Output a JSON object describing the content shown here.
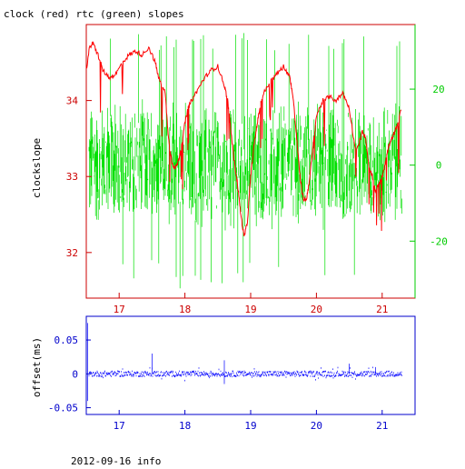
{
  "chart_data": [
    {
      "type": "line",
      "title": "clock (red) rtc (green) slopes",
      "ylabel": "clockslope",
      "xlim": [
        16.5,
        21.5
      ],
      "x_ticks": [
        17,
        18,
        19,
        20,
        21
      ],
      "ylim": [
        31.4,
        35.0
      ],
      "y_ticks": [
        32,
        33,
        34
      ],
      "y2lim": [
        -35,
        37
      ],
      "y2_ticks": [
        -20,
        0,
        20
      ],
      "colors": {
        "red": "#ff0000",
        "green": "#00e000",
        "axis_left": "#cc0000",
        "axis_right": "#00cc00",
        "ticks_x": "#cc0000"
      },
      "series": [
        {
          "color": "#ff0000",
          "axis": "left",
          "x": [
            16.5,
            16.55,
            16.6,
            16.68,
            16.75,
            16.85,
            16.95,
            17.05,
            17.15,
            17.25,
            17.35,
            17.45,
            17.55,
            17.6,
            17.7,
            17.75,
            17.8,
            17.85,
            17.9,
            17.95,
            18.0,
            18.05,
            18.1,
            18.2,
            18.3,
            18.4,
            18.5,
            18.6,
            18.65,
            18.7,
            18.75,
            18.8,
            18.85,
            18.9,
            18.95,
            19.0,
            19.05,
            19.1,
            19.15,
            19.2,
            19.3,
            19.4,
            19.5,
            19.6,
            19.65,
            19.7,
            19.75,
            19.8,
            19.85,
            19.9,
            19.95,
            20.0,
            20.1,
            20.2,
            20.3,
            20.4,
            20.5,
            20.6,
            20.7,
            20.75,
            20.8,
            20.85,
            20.9,
            20.95,
            21.0,
            21.05,
            21.1,
            21.15,
            21.2,
            21.3
          ],
          "y": [
            34.4,
            34.7,
            34.75,
            34.6,
            34.4,
            34.3,
            34.35,
            34.5,
            34.6,
            34.65,
            34.6,
            34.7,
            34.5,
            34.3,
            34.1,
            33.5,
            33.2,
            33.1,
            33.2,
            33.4,
            33.7,
            33.9,
            34.0,
            34.15,
            34.3,
            34.4,
            34.45,
            34.2,
            34.0,
            33.6,
            33.2,
            32.9,
            32.5,
            32.2,
            32.4,
            33.0,
            33.4,
            33.7,
            33.95,
            34.1,
            34.25,
            34.35,
            34.45,
            34.3,
            34.0,
            33.5,
            33.0,
            32.7,
            32.7,
            33.0,
            33.4,
            33.8,
            34.0,
            34.05,
            34.0,
            34.1,
            33.9,
            33.3,
            33.6,
            33.5,
            33.1,
            33.0,
            32.8,
            32.9,
            33.0,
            33.2,
            33.4,
            33.5,
            33.6,
            33.9
          ]
        },
        {
          "color": "#00e000",
          "axis": "right",
          "amplitude_typical": 15,
          "x_range": [
            16.5,
            21.3
          ]
        }
      ]
    },
    {
      "type": "scatter",
      "ylabel": "offset(ms)",
      "xlim": [
        16.5,
        21.5
      ],
      "x_ticks": [
        17,
        18,
        19,
        20,
        21
      ],
      "ylim": [
        -0.06,
        0.085
      ],
      "y_ticks": [
        -0.05,
        0,
        0.05
      ],
      "colors": {
        "points": "#0000ff",
        "axis": "#0000cc"
      },
      "series": [
        {
          "color": "#0000ff",
          "x_range": [
            16.5,
            21.3
          ],
          "y_typical": 0.0,
          "spread": 0.004
        }
      ]
    }
  ],
  "footer": {
    "date_info": "2012-09-16 info"
  }
}
